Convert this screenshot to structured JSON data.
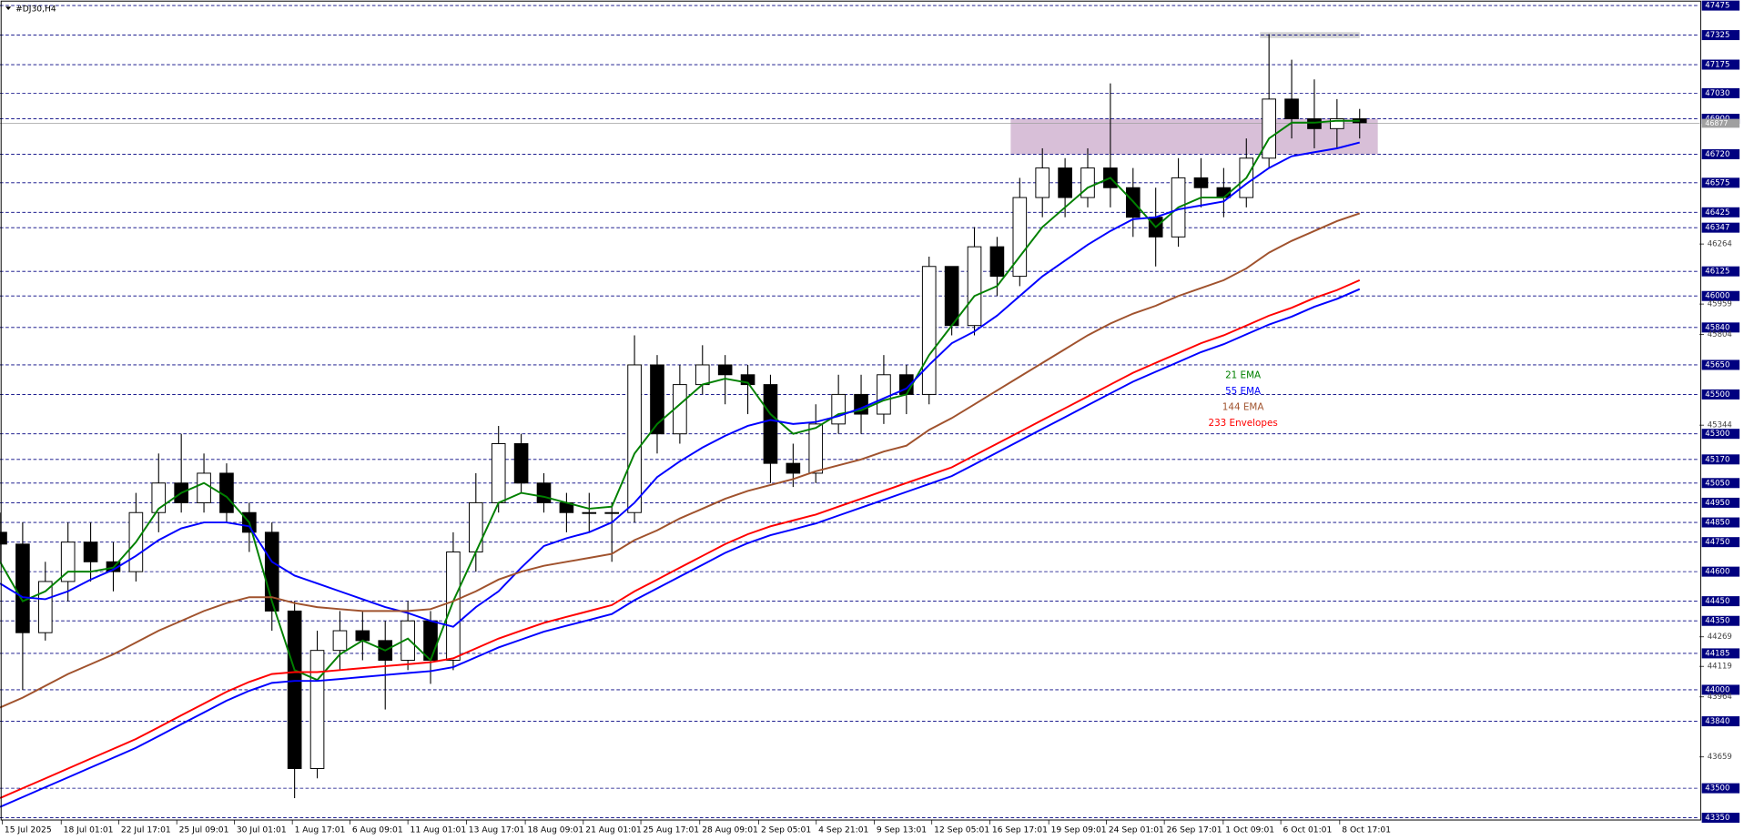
{
  "chart_data": {
    "type": "candlestick",
    "title": "#DJ30,H4",
    "x": [
      0,
      5,
      10,
      15,
      20,
      25,
      30,
      35,
      40,
      45,
      50,
      55,
      60,
      65,
      70,
      75,
      80,
      85,
      90,
      95,
      100,
      105,
      110,
      115,
      120,
      125,
      130,
      135,
      140,
      145,
      150,
      155,
      160,
      165,
      170,
      175,
      180,
      185,
      190,
      195,
      200,
      205,
      210,
      215,
      220,
      225,
      230,
      235,
      240,
      245,
      250,
      255,
      260,
      265,
      270,
      275,
      280,
      285,
      290,
      295,
      300
    ],
    "candles": {
      "open": [
        44800,
        44740,
        44290,
        44550,
        44750,
        44650,
        44600,
        44900,
        45050,
        44950,
        45100,
        44900,
        44800,
        44400,
        43600,
        44200,
        44300,
        44250,
        44150,
        44350,
        44150,
        44700,
        44950,
        45250,
        45050,
        44950,
        44900,
        44900,
        44900,
        45650,
        45300,
        45550,
        45650,
        45600,
        45550,
        45150,
        45100,
        45350,
        45500,
        45400,
        45600,
        45500,
        46150,
        45850,
        46250,
        46100,
        46500,
        46650,
        46500,
        46650,
        46550,
        46400,
        46300,
        46600,
        46550,
        46500,
        46700,
        47000,
        46900,
        46850,
        46900
      ],
      "high": [
        44900,
        44850,
        44650,
        44850,
        44850,
        44750,
        45000,
        45200,
        45300,
        45200,
        45150,
        44950,
        44850,
        44450,
        44300,
        44400,
        44400,
        44350,
        44450,
        44400,
        44800,
        45100,
        45340,
        45300,
        45100,
        45000,
        45000,
        44950,
        45800,
        45700,
        45650,
        45750,
        45700,
        45650,
        45600,
        45250,
        45450,
        45600,
        45600,
        45700,
        45650,
        46200,
        46150,
        46350,
        46300,
        46600,
        46750,
        46700,
        46750,
        47080,
        46650,
        46550,
        46700,
        46700,
        46650,
        46800,
        47330,
        47200,
        47100,
        47000,
        46950
      ],
      "low": [
        44650,
        44000,
        44250,
        44450,
        44550,
        44500,
        44550,
        44800,
        44900,
        44900,
        44850,
        44700,
        44300,
        43450,
        43550,
        44100,
        44150,
        43900,
        44100,
        44030,
        44100,
        44600,
        44900,
        45000,
        44900,
        44800,
        44800,
        44650,
        44850,
        45200,
        45250,
        45500,
        45450,
        45400,
        45050,
        45030,
        45050,
        45300,
        45300,
        45350,
        45400,
        45450,
        45800,
        45800,
        46000,
        46050,
        46400,
        46400,
        46450,
        46450,
        46300,
        46150,
        46250,
        46450,
        46400,
        46450,
        46650,
        46800,
        46750,
        46750,
        46800
      ],
      "close": [
        44740,
        44290,
        44550,
        44750,
        44650,
        44600,
        44900,
        45050,
        44950,
        45100,
        44900,
        44800,
        44400,
        43600,
        44200,
        44300,
        44250,
        44150,
        44350,
        44150,
        44700,
        44950,
        45250,
        45050,
        44950,
        44900,
        44900,
        44900,
        45650,
        45300,
        45550,
        45650,
        45600,
        45550,
        45150,
        45100,
        45350,
        45500,
        45400,
        45600,
        45500,
        46150,
        45850,
        46250,
        46100,
        46500,
        46650,
        46500,
        46650,
        46550,
        46400,
        46300,
        46600,
        46550,
        46500,
        46700,
        47000,
        46900,
        46850,
        46900,
        46880
      ],
      "up_color": "#ffffff",
      "down_color": "#000000"
    },
    "series": [
      {
        "name": "21 EMA",
        "color": "#008000",
        "values": [
          44650,
          44450,
          44500,
          44600,
          44600,
          44620,
          44750,
          44920,
          45000,
          45050,
          44980,
          44850,
          44450,
          44100,
          44050,
          44180,
          44250,
          44200,
          44260,
          44150,
          44450,
          44700,
          44950,
          45000,
          44980,
          44950,
          44920,
          44930,
          45200,
          45350,
          45450,
          45550,
          45580,
          45560,
          45400,
          45300,
          45330,
          45400,
          45420,
          45470,
          45500,
          45700,
          45850,
          46000,
          46050,
          46200,
          46350,
          46450,
          46550,
          46600,
          46480,
          46350,
          46450,
          46500,
          46500,
          46600,
          46800,
          46880,
          46880,
          46890,
          46890
        ]
      },
      {
        "name": "55 EMA",
        "color": "#0000ff",
        "values": [
          44540,
          44470,
          44460,
          44500,
          44560,
          44610,
          44680,
          44760,
          44820,
          44850,
          44850,
          44830,
          44650,
          44580,
          44540,
          44500,
          44460,
          44420,
          44390,
          44350,
          44320,
          44420,
          44500,
          44620,
          44730,
          44770,
          44800,
          44850,
          44950,
          45080,
          45160,
          45230,
          45290,
          45340,
          45370,
          45350,
          45360,
          45390,
          45430,
          45480,
          45530,
          45650,
          45760,
          45820,
          45900,
          46000,
          46100,
          46180,
          46260,
          46330,
          46390,
          46400,
          46440,
          46460,
          46480,
          46570,
          46650,
          46710,
          46730,
          46750,
          46780
        ]
      },
      {
        "name": "144 EMA",
        "color": "#a0522d",
        "values": [
          43910,
          43960,
          44020,
          44080,
          44130,
          44180,
          44240,
          44300,
          44350,
          44400,
          44440,
          44470,
          44470,
          44440,
          44420,
          44410,
          44400,
          44400,
          44400,
          44410,
          44450,
          44500,
          44560,
          44600,
          44630,
          44650,
          44670,
          44690,
          44760,
          44810,
          44870,
          44920,
          44970,
          45010,
          45040,
          45070,
          45110,
          45140,
          45170,
          45210,
          45240,
          45320,
          45380,
          45450,
          45520,
          45590,
          45660,
          45730,
          45800,
          45860,
          45910,
          45950,
          46000,
          46040,
          46080,
          46140,
          46220,
          46280,
          46330,
          46380,
          46420
        ]
      },
      {
        "name": "233 Envelopes",
        "color": "#ff0000",
        "values": [
          43450,
          43500,
          43550,
          43600,
          43650,
          43700,
          43750,
          43810,
          43870,
          43930,
          43990,
          44040,
          44080,
          44090,
          44090,
          44100,
          44110,
          44120,
          44130,
          44140,
          44160,
          44210,
          44260,
          44300,
          44340,
          44370,
          44400,
          44430,
          44500,
          44560,
          44620,
          44680,
          44740,
          44790,
          44830,
          44860,
          44890,
          44930,
          44970,
          45010,
          45050,
          45090,
          45130,
          45190,
          45250,
          45310,
          45370,
          45430,
          45490,
          45550,
          45610,
          45660,
          45710,
          45760,
          45800,
          45850,
          45900,
          45940,
          45990,
          46030,
          46080
        ],
        "lower": [
          43405,
          43455,
          43505,
          43555,
          43605,
          43655,
          43705,
          43765,
          43825,
          43885,
          43945,
          43995,
          44035,
          44045,
          44045,
          44055,
          44065,
          44075,
          44085,
          44095,
          44115,
          44165,
          44215,
          44255,
          44295,
          44325,
          44355,
          44385,
          44455,
          44515,
          44575,
          44635,
          44695,
          44745,
          44785,
          44815,
          44845,
          44885,
          44925,
          44965,
          45005,
          45045,
          45085,
          45145,
          45205,
          45265,
          45325,
          45385,
          45445,
          45505,
          45565,
          45615,
          45665,
          45715,
          45755,
          45805,
          45855,
          45895,
          45945,
          45985,
          46035
        ],
        "lower_color": "#0000ff"
      }
    ],
    "xlim": [
      0,
      375
    ],
    "ylim": [
      43350,
      47475
    ],
    "xticks": [
      {
        "value": 0.5,
        "label": "15 Jul 2025"
      },
      {
        "value": 13.5,
        "label": "18 Jul 01:01"
      },
      {
        "value": 26.2,
        "label": "22 Jul 17:01"
      },
      {
        "value": 39,
        "label": "25 Jul 09:01"
      },
      {
        "value": 51.7,
        "label": "30 Jul 01:01"
      },
      {
        "value": 64.5,
        "label": "1 Aug 17:01"
      },
      {
        "value": 77.2,
        "label": "6 Aug 09:01"
      },
      {
        "value": 90,
        "label": "11 Aug 01:01"
      },
      {
        "value": 102.9,
        "label": "13 Aug 17:01"
      },
      {
        "value": 115.9,
        "label": "18 Aug 09:01"
      },
      {
        "value": 128.7,
        "label": "21 Aug 01:01"
      },
      {
        "value": 141.4,
        "label": "25 Aug 17:01"
      },
      {
        "value": 154.4,
        "label": "28 Aug 09:01"
      },
      {
        "value": 167.4,
        "label": "2 Sep 05:01"
      },
      {
        "value": 180.1,
        "label": "4 Sep 21:01"
      },
      {
        "value": 192.9,
        "label": "9 Sep 13:01"
      },
      {
        "value": 205.6,
        "label": "12 Sep 05:01"
      },
      {
        "value": 218.4,
        "label": "16 Sep 17:01"
      },
      {
        "value": 231.4,
        "label": "19 Sep 09:01"
      },
      {
        "value": 244.1,
        "label": "24 Sep 01:01"
      },
      {
        "value": 256.9,
        "label": "26 Sep 17:01"
      },
      {
        "value": 269.9,
        "label": "1 Oct 09:01"
      },
      {
        "value": 282.6,
        "label": "6 Oct 01:01"
      },
      {
        "value": 295.6,
        "label": "8 Oct 17:01"
      }
    ],
    "yticks": [
      46264,
      45959,
      45804,
      45344,
      44269,
      44119,
      43964,
      43659
    ],
    "levels": [
      47475,
      47325,
      47175,
      47030,
      46900,
      46720,
      46575,
      46425,
      46347,
      46125,
      46000,
      45840,
      45650,
      45500,
      45300,
      45170,
      45050,
      44950,
      44850,
      44750,
      44600,
      44450,
      44350,
      44185,
      44000,
      43840,
      43500,
      43350
    ],
    "level_color": "#000080",
    "last_price": 46877,
    "zones": [
      {
        "x": [
          223,
          304
        ],
        "y": [
          46720,
          46900
        ],
        "color": "#d8bfd8"
      },
      {
        "x": [
          278,
          300
        ],
        "y": [
          47310,
          47340
        ],
        "color": "#d3d3d3"
      }
    ]
  }
}
